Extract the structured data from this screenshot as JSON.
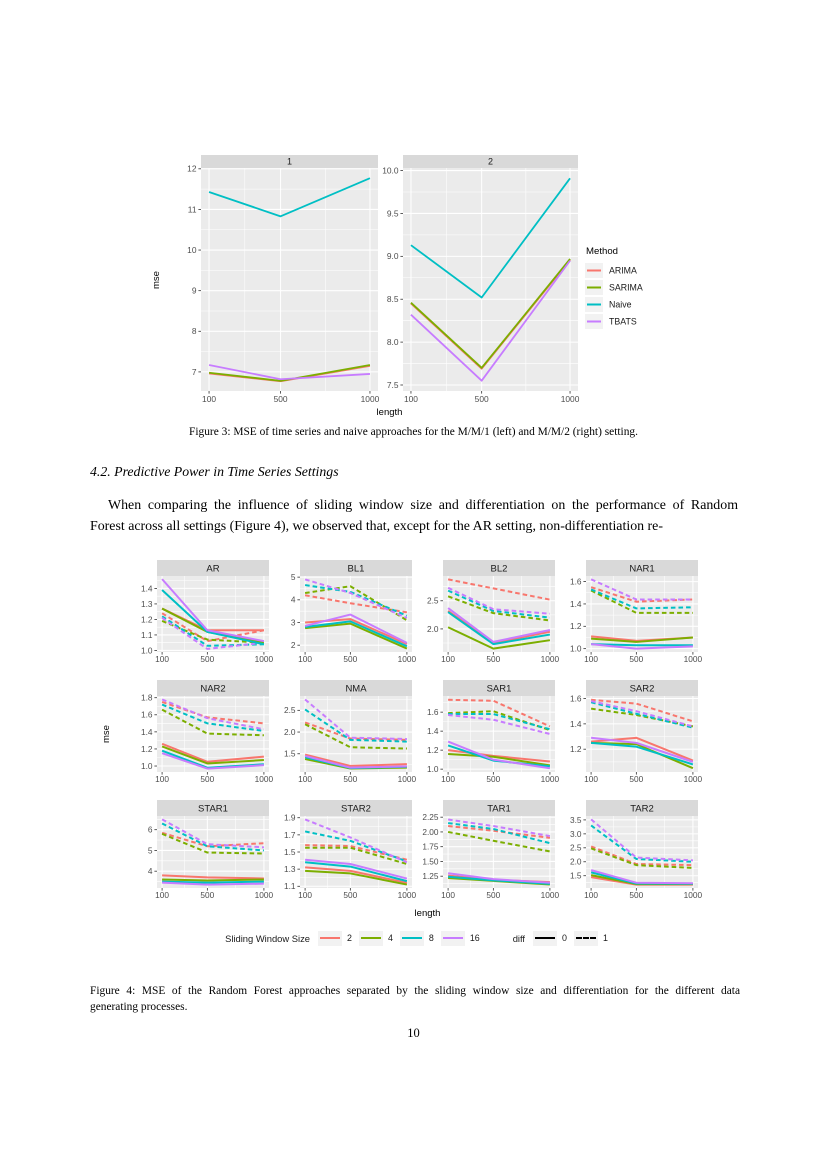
{
  "page_number": "10",
  "figure3": {
    "caption": "Figure 3: MSE of time series and naive approaches for the M/M/1 (left) and M/M/2 (right) setting."
  },
  "section_heading": "4.2. Predictive Power in Time Series Settings",
  "paragraph": {
    "line1": "When comparing the influence of sliding window size and differentiation on the performance of Random",
    "line2": "Forest across all settings (Figure 4), we observed that, except for the AR setting, non-differentiation re-"
  },
  "figure4": {
    "caption_line1": "Figure 4: MSE of the Random Forest approaches separated by the sliding window size and differentiation for the different data",
    "caption_line2": "generating processes."
  },
  "chart_data": [
    {
      "id": "figure3",
      "type": "line",
      "x": [
        100,
        500,
        1000
      ],
      "xlabel": "length",
      "ylabel": "mse",
      "legend_title": "Method",
      "legend_items": [
        "ARIMA",
        "SARIMA",
        "Naive",
        "TBATS"
      ],
      "colors": {
        "ARIMA": "#F8766D",
        "SARIMA": "#7CAE00",
        "Naive": "#00BFC4",
        "TBATS": "#C77CFF"
      },
      "draw_order": [
        "ARIMA",
        "SARIMA",
        "Naive",
        "TBATS"
      ],
      "panels": [
        {
          "title": "1",
          "ylim": [
            6.53,
            12.02
          ],
          "yticks": [
            "7",
            "8",
            "9",
            "10",
            "11",
            "12"
          ],
          "series": {
            "ARIMA": [
              6.96,
              6.77,
              7.15
            ],
            "SARIMA": [
              6.98,
              6.78,
              7.17
            ],
            "Naive": [
              11.43,
              10.83,
              11.77
            ],
            "TBATS": [
              7.17,
              6.82,
              6.95
            ]
          }
        },
        {
          "title": "2",
          "ylim": [
            7.43,
            10.03
          ],
          "yticks": [
            "7.5",
            "8.0",
            "8.5",
            "9.0",
            "9.5",
            "10.0"
          ],
          "series": {
            "ARIMA": [
              8.45,
              7.69,
              8.96
            ],
            "SARIMA": [
              8.46,
              7.7,
              8.97
            ],
            "Naive": [
              9.13,
              8.52,
              9.91
            ],
            "TBATS": [
              8.32,
              7.55,
              8.95
            ]
          }
        }
      ]
    },
    {
      "id": "figure4",
      "type": "line",
      "x": [
        100,
        500,
        1000
      ],
      "xlabel": "length",
      "ylabel": "mse",
      "legend": {
        "size_title": "Sliding Window Size",
        "sizes": [
          "2",
          "4",
          "8",
          "16"
        ],
        "diff_title": "diff",
        "diff_values": [
          "0",
          "1"
        ]
      },
      "colors": {
        "2": "#F8766D",
        "4": "#7CAE00",
        "8": "#00BFC4",
        "16": "#C77CFF"
      },
      "panels": [
        {
          "title": "AR",
          "ylim": [
            0.99,
            1.48
          ],
          "yticks": [
            "1.0",
            "1.1",
            "1.2",
            "1.3",
            "1.4"
          ],
          "solid": {
            "2": [
              1.27,
              1.13,
              1.13
            ],
            "4": [
              1.27,
              1.12,
              1.05
            ],
            "8": [
              1.39,
              1.12,
              1.04
            ],
            "16": [
              1.46,
              1.13,
              1.06
            ]
          },
          "dashed": {
            "2": [
              1.24,
              1.06,
              1.13
            ],
            "4": [
              1.19,
              1.07,
              1.05
            ],
            "8": [
              1.22,
              1.03,
              1.04
            ],
            "16": [
              1.21,
              1.01,
              1.05
            ]
          }
        },
        {
          "title": "BL1",
          "ylim": [
            1.7,
            5.05
          ],
          "yticks": [
            "2",
            "3",
            "4",
            "5"
          ],
          "solid": {
            "2": [
              3.0,
              3.15,
              2.05
            ],
            "4": [
              2.75,
              2.95,
              1.85
            ],
            "8": [
              2.8,
              3.05,
              1.95
            ],
            "16": [
              2.85,
              3.35,
              2.1
            ]
          },
          "dashed": {
            "2": [
              4.2,
              3.85,
              3.45
            ],
            "4": [
              4.3,
              4.6,
              3.1
            ],
            "8": [
              4.65,
              4.35,
              3.3
            ],
            "16": [
              4.9,
              4.3,
              3.2
            ]
          }
        },
        {
          "title": "BL2",
          "ylim": [
            1.59,
            2.94
          ],
          "yticks": [
            "2.0",
            "2.5"
          ],
          "solid": {
            "2": [
              2.32,
              1.75,
              1.95
            ],
            "4": [
              2.03,
              1.65,
              1.8
            ],
            "8": [
              2.3,
              1.73,
              1.9
            ],
            "16": [
              2.37,
              1.77,
              1.98
            ]
          },
          "dashed": {
            "2": [
              2.88,
              2.72,
              2.52
            ],
            "4": [
              2.58,
              2.28,
              2.15
            ],
            "8": [
              2.68,
              2.32,
              2.2
            ],
            "16": [
              2.73,
              2.35,
              2.27
            ]
          }
        },
        {
          "title": "NAR1",
          "ylim": [
            0.97,
            1.65
          ],
          "yticks": [
            "1.0",
            "1.2",
            "1.4",
            "1.6"
          ],
          "solid": {
            "2": [
              1.11,
              1.07,
              1.1
            ],
            "4": [
              1.09,
              1.06,
              1.1
            ],
            "8": [
              1.04,
              1.03,
              1.03
            ],
            "16": [
              1.04,
              1.0,
              1.02
            ]
          },
          "dashed": {
            "2": [
              1.55,
              1.42,
              1.44
            ],
            "4": [
              1.52,
              1.32,
              1.32
            ],
            "8": [
              1.53,
              1.36,
              1.37
            ],
            "16": [
              1.62,
              1.44,
              1.44
            ]
          }
        },
        {
          "title": "NAR2",
          "ylim": [
            0.93,
            1.82
          ],
          "yticks": [
            "1.0",
            "1.2",
            "1.4",
            "1.6",
            "1.8"
          ],
          "solid": {
            "2": [
              1.26,
              1.05,
              1.11
            ],
            "4": [
              1.23,
              1.03,
              1.07
            ],
            "8": [
              1.18,
              0.98,
              1.02
            ],
            "16": [
              1.15,
              0.97,
              1.01
            ]
          },
          "dashed": {
            "2": [
              1.75,
              1.57,
              1.5
            ],
            "4": [
              1.66,
              1.38,
              1.36
            ],
            "8": [
              1.72,
              1.5,
              1.41
            ],
            "16": [
              1.78,
              1.56,
              1.43
            ]
          }
        },
        {
          "title": "NMA",
          "ylim": [
            1.08,
            2.83
          ],
          "yticks": [
            "1.5",
            "2.0",
            "2.5"
          ],
          "solid": {
            "2": [
              1.48,
              1.22,
              1.26
            ],
            "4": [
              1.38,
              1.16,
              1.18
            ],
            "8": [
              1.42,
              1.17,
              1.2
            ],
            "16": [
              1.45,
              1.18,
              1.21
            ]
          },
          "dashed": {
            "2": [
              2.22,
              1.85,
              1.82
            ],
            "4": [
              2.18,
              1.65,
              1.62
            ],
            "8": [
              2.52,
              1.82,
              1.78
            ],
            "16": [
              2.75,
              1.87,
              1.84
            ]
          }
        },
        {
          "title": "SAR1",
          "ylim": [
            0.97,
            1.77
          ],
          "yticks": [
            "1.0",
            "1.2",
            "1.4",
            "1.6"
          ],
          "solid": {
            "2": [
              1.2,
              1.14,
              1.08
            ],
            "4": [
              1.16,
              1.13,
              1.04
            ],
            "8": [
              1.25,
              1.09,
              1.03
            ],
            "16": [
              1.29,
              1.1,
              1.01
            ]
          },
          "dashed": {
            "2": [
              1.73,
              1.72,
              1.45
            ],
            "4": [
              1.59,
              1.61,
              1.41
            ],
            "8": [
              1.58,
              1.58,
              1.42
            ],
            "16": [
              1.57,
              1.52,
              1.37
            ]
          }
        },
        {
          "title": "SAR2",
          "ylim": [
            1.02,
            1.62
          ],
          "yticks": [
            "1.2",
            "1.4",
            "1.6"
          ],
          "solid": {
            "2": [
              1.26,
              1.29,
              1.11
            ],
            "4": [
              1.25,
              1.24,
              1.05
            ],
            "8": [
              1.25,
              1.22,
              1.08
            ],
            "16": [
              1.29,
              1.25,
              1.1
            ]
          },
          "dashed": {
            "2": [
              1.59,
              1.56,
              1.42
            ],
            "4": [
              1.52,
              1.47,
              1.38
            ],
            "8": [
              1.57,
              1.48,
              1.37
            ],
            "16": [
              1.58,
              1.5,
              1.38
            ]
          }
        },
        {
          "title": "STAR1",
          "ylim": [
            3.19,
            6.66
          ],
          "yticks": [
            "4",
            "5",
            "6"
          ],
          "solid": {
            "2": [
              3.8,
              3.7,
              3.65
            ],
            "4": [
              3.6,
              3.55,
              3.6
            ],
            "8": [
              3.5,
              3.45,
              3.5
            ],
            "16": [
              3.45,
              3.35,
              3.4
            ]
          },
          "dashed": {
            "2": [
              5.85,
              5.2,
              5.35
            ],
            "4": [
              5.8,
              4.9,
              4.85
            ],
            "8": [
              6.3,
              5.2,
              5.0
            ],
            "16": [
              6.5,
              5.3,
              5.15
            ]
          }
        },
        {
          "title": "STAR2",
          "ylim": [
            1.08,
            1.92
          ],
          "yticks": [
            "1.1",
            "1.3",
            "1.5",
            "1.7",
            "1.9"
          ],
          "solid": {
            "2": [
              1.32,
              1.28,
              1.14
            ],
            "4": [
              1.28,
              1.25,
              1.12
            ],
            "8": [
              1.38,
              1.33,
              1.16
            ],
            "16": [
              1.41,
              1.36,
              1.19
            ]
          },
          "dashed": {
            "2": [
              1.58,
              1.57,
              1.41
            ],
            "4": [
              1.55,
              1.55,
              1.36
            ],
            "8": [
              1.74,
              1.63,
              1.39
            ],
            "16": [
              1.88,
              1.67,
              1.38
            ]
          }
        },
        {
          "title": "TAR1",
          "ylim": [
            1.05,
            2.27
          ],
          "yticks": [
            "1.25",
            "1.50",
            "1.75",
            "2.00",
            "2.25"
          ],
          "solid": {
            "2": [
              1.26,
              1.19,
              1.15
            ],
            "4": [
              1.22,
              1.17,
              1.11
            ],
            "8": [
              1.24,
              1.18,
              1.12
            ],
            "16": [
              1.3,
              1.2,
              1.14
            ]
          },
          "dashed": {
            "2": [
              2.1,
              2.02,
              1.9
            ],
            "4": [
              2.0,
              1.85,
              1.67
            ],
            "8": [
              2.15,
              2.05,
              1.81
            ],
            "16": [
              2.21,
              2.1,
              1.93
            ]
          }
        },
        {
          "title": "TAR2",
          "ylim": [
            1.06,
            3.64
          ],
          "yticks": [
            "1.5",
            "2.0",
            "2.5",
            "3.0",
            "3.5"
          ],
          "solid": {
            "2": [
              1.45,
              1.18,
              1.18
            ],
            "4": [
              1.52,
              1.2,
              1.2
            ],
            "8": [
              1.62,
              1.22,
              1.21
            ],
            "16": [
              1.7,
              1.25,
              1.23
            ]
          },
          "dashed": {
            "2": [
              2.55,
              1.92,
              1.88
            ],
            "4": [
              2.48,
              1.88,
              1.78
            ],
            "8": [
              3.3,
              2.1,
              2.0
            ],
            "16": [
              3.52,
              2.15,
              2.05
            ]
          }
        }
      ]
    }
  ]
}
